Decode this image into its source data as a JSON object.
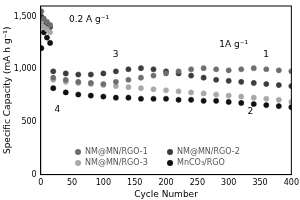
{
  "chart_data": {
    "type": "scatter",
    "x_label": "Cycle Number",
    "y_label": "Specific Capacity (mA h g⁻¹)",
    "x": [
      1,
      5,
      10,
      15,
      20,
      40,
      60,
      80,
      100,
      120,
      140,
      160,
      180,
      200,
      220,
      240,
      260,
      280,
      300,
      320,
      340,
      360,
      380,
      400
    ],
    "series": [
      {
        "name": "NM@MN/RGO-1",
        "color": "#6e6e6e",
        "marker": "circle",
        "values": [
          1550,
          1480,
          1450,
          1420,
          920,
          900,
          880,
          870,
          860,
          880,
          900,
          920,
          940,
          960,
          980,
          1000,
          1010,
          1000,
          990,
          1000,
          1010,
          1000,
          990,
          980
        ]
      },
      {
        "name": "NM@MN/RGO-3",
        "color": "#a8a8a8",
        "marker": "circle",
        "values": [
          1450,
          1400,
          1380,
          1350,
          900,
          880,
          870,
          860,
          850,
          840,
          830,
          820,
          810,
          800,
          790,
          780,
          770,
          760,
          750,
          740,
          730,
          720,
          710,
          690
        ]
      },
      {
        "name": "NM@MN/RGO-2",
        "color": "#3c3c3c",
        "marker": "circle",
        "values": [
          1500,
          1450,
          1420,
          1400,
          980,
          960,
          950,
          950,
          960,
          980,
          1000,
          1010,
          1000,
          980,
          960,
          940,
          920,
          900,
          890,
          880,
          870,
          860,
          850,
          840
        ]
      },
      {
        "name": "MnCO₃/RGO",
        "color": "#111111",
        "marker": "circle",
        "values": [
          1200,
          1350,
          1300,
          1250,
          820,
          780,
          760,
          750,
          740,
          730,
          730,
          720,
          720,
          720,
          710,
          710,
          700,
          700,
          690,
          680,
          670,
          660,
          650,
          640
        ]
      }
    ],
    "xlim": [
      0,
      400
    ],
    "xticks": [
      0,
      50,
      100,
      150,
      200,
      250,
      300,
      350,
      400
    ],
    "ylim": [
      0,
      1600
    ],
    "yticks": [
      0,
      500,
      1000,
      1500
    ],
    "grid": false,
    "legend": "lower center",
    "annotations": [
      {
        "text": "0.2 A g⁻¹",
        "x": 45,
        "y": 1470
      },
      {
        "text": "1A g⁻¹",
        "x": 285,
        "y": 1230
      },
      {
        "text": "1",
        "x": 355,
        "y": 1140
      },
      {
        "text": "2",
        "x": 330,
        "y": 600
      },
      {
        "text": "3",
        "x": 115,
        "y": 1140
      },
      {
        "text": "4",
        "x": 22,
        "y": 620
      }
    ]
  }
}
